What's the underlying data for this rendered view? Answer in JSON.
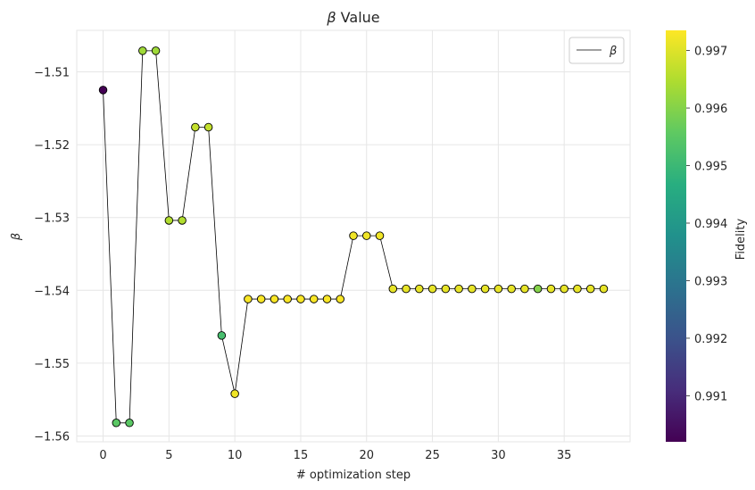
{
  "chart_data": {
    "type": "scatter",
    "title_symbol": "β",
    "title_text": " Value",
    "xlabel": "# optimization step",
    "ylabel": "β",
    "xlim": [
      -2,
      40
    ],
    "ylim": [
      -1.5608,
      -1.5043
    ],
    "xticks": [
      0,
      5,
      10,
      15,
      20,
      25,
      30,
      35
    ],
    "yticks": [
      -1.56,
      -1.55,
      -1.54,
      -1.53,
      -1.52,
      -1.51
    ],
    "ytick_labels": [
      "−1.56",
      "−1.55",
      "−1.54",
      "−1.53",
      "−1.52",
      "−1.51"
    ],
    "grid": true,
    "legend": {
      "position": "top-right",
      "label": "β"
    },
    "series": [
      {
        "name": "β",
        "x": [
          0,
          1,
          2,
          3,
          4,
          5,
          6,
          7,
          8,
          9,
          10,
          11,
          12,
          13,
          14,
          15,
          16,
          17,
          18,
          19,
          20,
          21,
          22,
          23,
          24,
          25,
          26,
          27,
          28,
          29,
          30,
          31,
          32,
          33,
          34,
          35,
          36,
          37,
          38
        ],
        "y": [
          -1.5125,
          -1.5582,
          -1.5582,
          -1.5071,
          -1.5071,
          -1.5304,
          -1.5304,
          -1.5176,
          -1.5176,
          -1.5462,
          -1.5542,
          -1.5412,
          -1.5412,
          -1.5412,
          -1.5412,
          -1.5412,
          -1.5412,
          -1.5412,
          -1.5412,
          -1.5325,
          -1.5325,
          -1.5325,
          -1.5398,
          -1.5398,
          -1.5398,
          -1.5398,
          -1.5398,
          -1.5398,
          -1.5398,
          -1.5398,
          -1.5398,
          -1.5398,
          -1.5398,
          -1.5398,
          -1.5398,
          -1.5398,
          -1.5398,
          -1.5398,
          -1.5398
        ],
        "fidelity": [
          0.9902,
          0.9955,
          0.9955,
          0.9963,
          0.9963,
          0.9965,
          0.9965,
          0.9967,
          0.9967,
          0.9952,
          0.9972,
          0.9973,
          0.9973,
          0.9973,
          0.9973,
          0.9973,
          0.9973,
          0.9973,
          0.9973,
          0.9972,
          0.9972,
          0.9972,
          0.9971,
          0.9971,
          0.9971,
          0.9971,
          0.9971,
          0.9971,
          0.9971,
          0.9971,
          0.9971,
          0.9971,
          0.9971,
          0.996,
          0.9971,
          0.9971,
          0.9971,
          0.9971,
          0.9971
        ]
      }
    ],
    "colorbar": {
      "label": "Fidelity",
      "colormap": "viridis",
      "range": [
        0.9902,
        0.99735
      ],
      "ticks": [
        0.991,
        0.992,
        0.993,
        0.994,
        0.995,
        0.996,
        0.997
      ],
      "tick_labels": [
        "0.991",
        "0.992",
        "0.993",
        "0.994",
        "0.995",
        "0.996",
        "0.997"
      ]
    },
    "colors": {
      "line": "#000000",
      "grid": "#e6e6e6",
      "marker_edge": "#000000"
    }
  }
}
